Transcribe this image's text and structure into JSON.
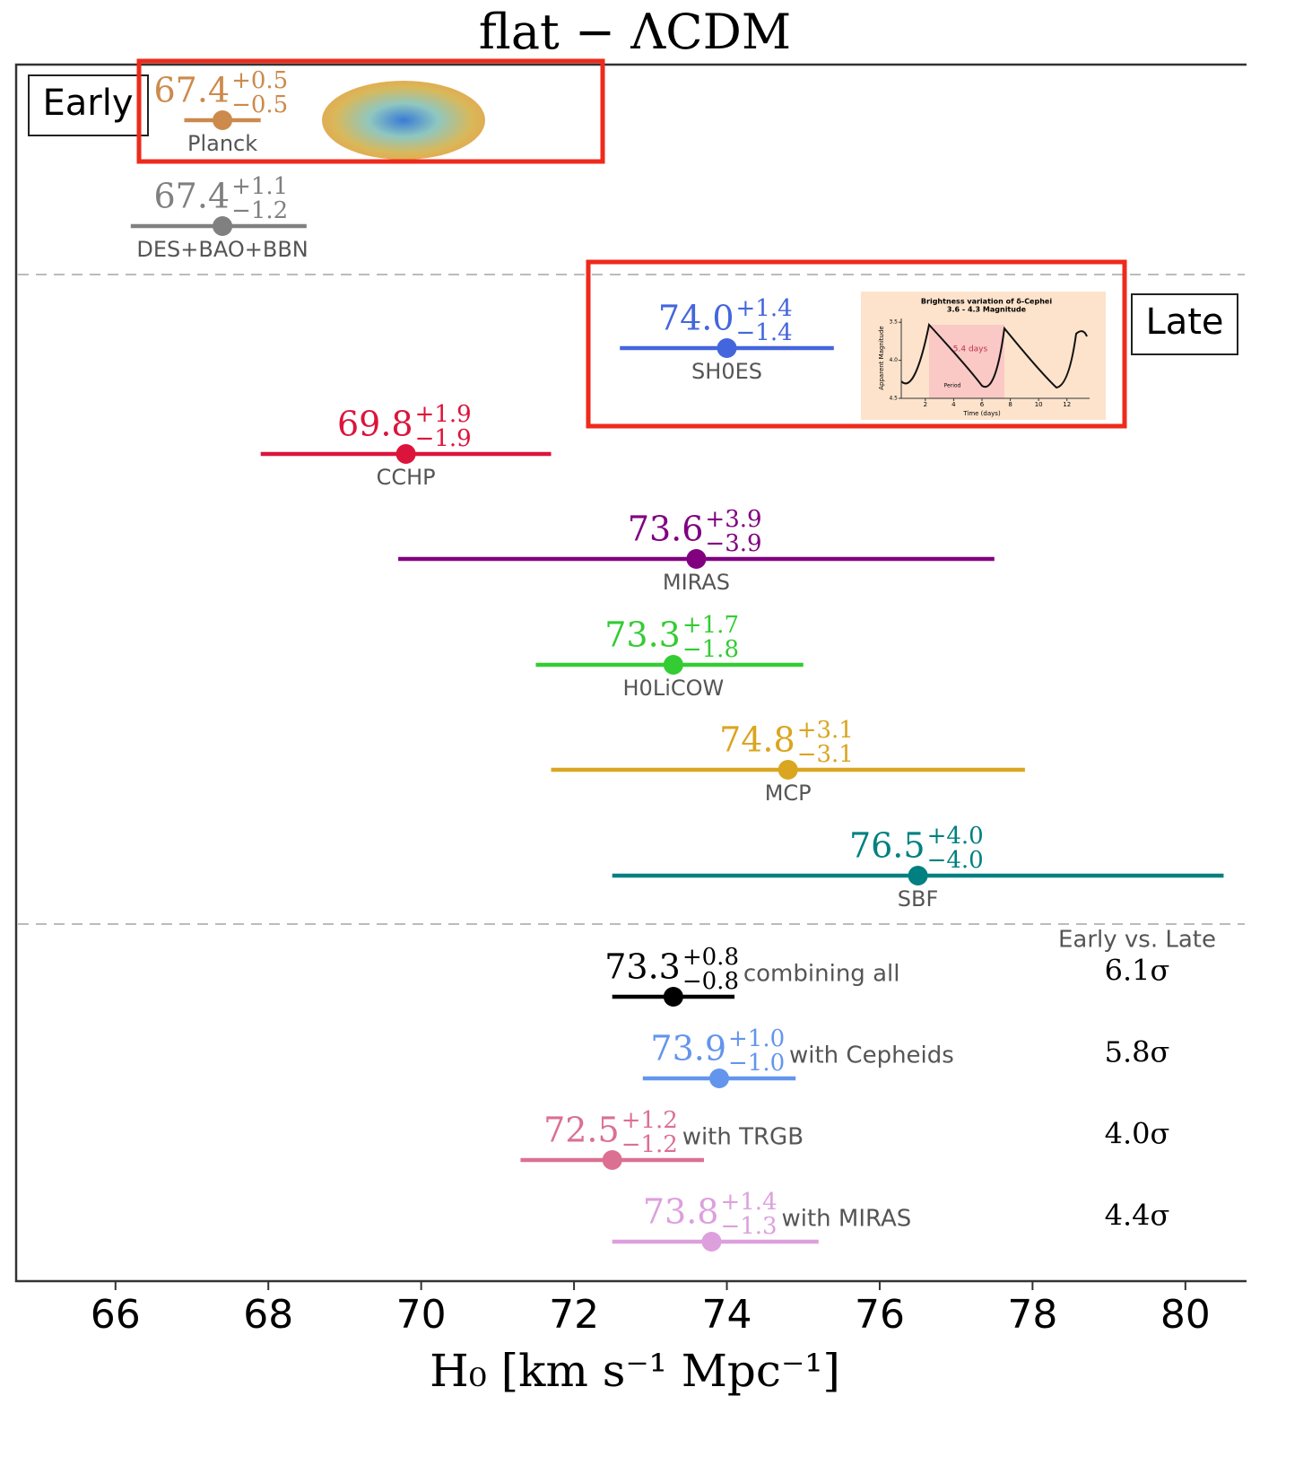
{
  "chart_data": {
    "type": "forest",
    "title": "flat − ΛCDM",
    "x_label": "H₀ [km s⁻¹ Mpc⁻¹]",
    "xlim": [
      64.7,
      80.8
    ],
    "xticks": [
      66,
      68,
      70,
      72,
      74,
      76,
      78,
      80
    ],
    "groups": [
      "Early",
      "Late"
    ],
    "tension_header": "Early vs. Late",
    "rows": [
      {
        "name": "Planck",
        "color": "#cc8a4c",
        "value": 67.4,
        "plus": {
          "value": 0.5,
          "label": "+0.5"
        },
        "minus": {
          "value": 0.5,
          "label": "−0.5"
        }
      },
      {
        "name": "DES+BAO+BBN",
        "color": "#808080",
        "value": 67.4,
        "plus": {
          "value": 1.1,
          "label": "+1.1"
        },
        "minus": {
          "value": 1.2,
          "label": "−1.2"
        }
      },
      {
        "name": "SH0ES",
        "color": "#4466dd",
        "value": 74.0,
        "value_label": "74.0",
        "plus": {
          "value": 1.4,
          "label": "+1.4"
        },
        "minus": {
          "value": 1.4,
          "label": "−1.4"
        }
      },
      {
        "name": "CCHP",
        "color": "#dc143c",
        "value": 69.8,
        "plus": {
          "value": 1.9,
          "label": "+1.9"
        },
        "minus": {
          "value": 1.9,
          "label": "−1.9"
        }
      },
      {
        "name": "MIRAS",
        "color": "#800080",
        "value": 73.6,
        "plus": {
          "value": 3.9,
          "label": "+3.9"
        },
        "minus": {
          "value": 3.9,
          "label": "−3.9"
        }
      },
      {
        "name": "H0LiCOW",
        "color": "#33cc33",
        "value": 73.3,
        "plus": {
          "value": 1.7,
          "label": "+1.7"
        },
        "minus": {
          "value": 1.8,
          "label": "−1.8"
        }
      },
      {
        "name": "MCP",
        "color": "#daa520",
        "value": 74.8,
        "plus": {
          "value": 3.1,
          "label": "+3.1"
        },
        "minus": {
          "value": 3.1,
          "label": "−3.1"
        }
      },
      {
        "name": "SBF",
        "color": "#008080",
        "value": 76.5,
        "plus": {
          "value": 4.0,
          "label": "+4.0"
        },
        "minus": {
          "value": 4.0,
          "label": "−4.0"
        }
      },
      {
        "note": "combining all",
        "color": "#000000",
        "value": 73.3,
        "plus": {
          "value": 0.8,
          "label": "+0.8"
        },
        "minus": {
          "value": 0.8,
          "label": "−0.8"
        },
        "tension": {
          "value": 6.1,
          "label": "6.1σ"
        }
      },
      {
        "note": "with Cepheids",
        "color": "#6495ed",
        "value": 73.9,
        "plus": {
          "value": 1.0,
          "label": "+1.0"
        },
        "minus": {
          "value": 1.0,
          "label": "−1.0"
        },
        "tension": {
          "value": 5.8,
          "label": "5.8σ"
        }
      },
      {
        "note": "with TRGB",
        "color": "#db7093",
        "value": 72.5,
        "plus": {
          "value": 1.2,
          "label": "+1.2"
        },
        "minus": {
          "value": 1.2,
          "label": "−1.2"
        },
        "tension": {
          "value": 4.0,
          "label": "4.0σ"
        }
      },
      {
        "note": "with MIRAS",
        "color": "#dda0dd",
        "value": 73.8,
        "plus": {
          "value": 1.4,
          "label": "+1.4"
        },
        "minus": {
          "value": 1.3,
          "label": "−1.3"
        },
        "tension": {
          "value": 4.4,
          "label": "4.4σ"
        }
      }
    ]
  },
  "inset": {
    "title": "Brightness variation of δ-Cephei",
    "subtitle": "3.6 - 4.3 Magnitude",
    "annotation": "5.4 days",
    "period_label": "Period",
    "y_label": "Apparent Magnitude",
    "x_label": "Time (days)",
    "xlim": [
      0.3,
      13.6
    ],
    "ylim": [
      3.45,
      4.5
    ],
    "xticks": [
      2,
      4,
      6,
      8,
      10,
      12
    ],
    "yticks": [
      3.5,
      {
        "value": 4,
        "label": "4.0"
      },
      4.5
    ]
  }
}
